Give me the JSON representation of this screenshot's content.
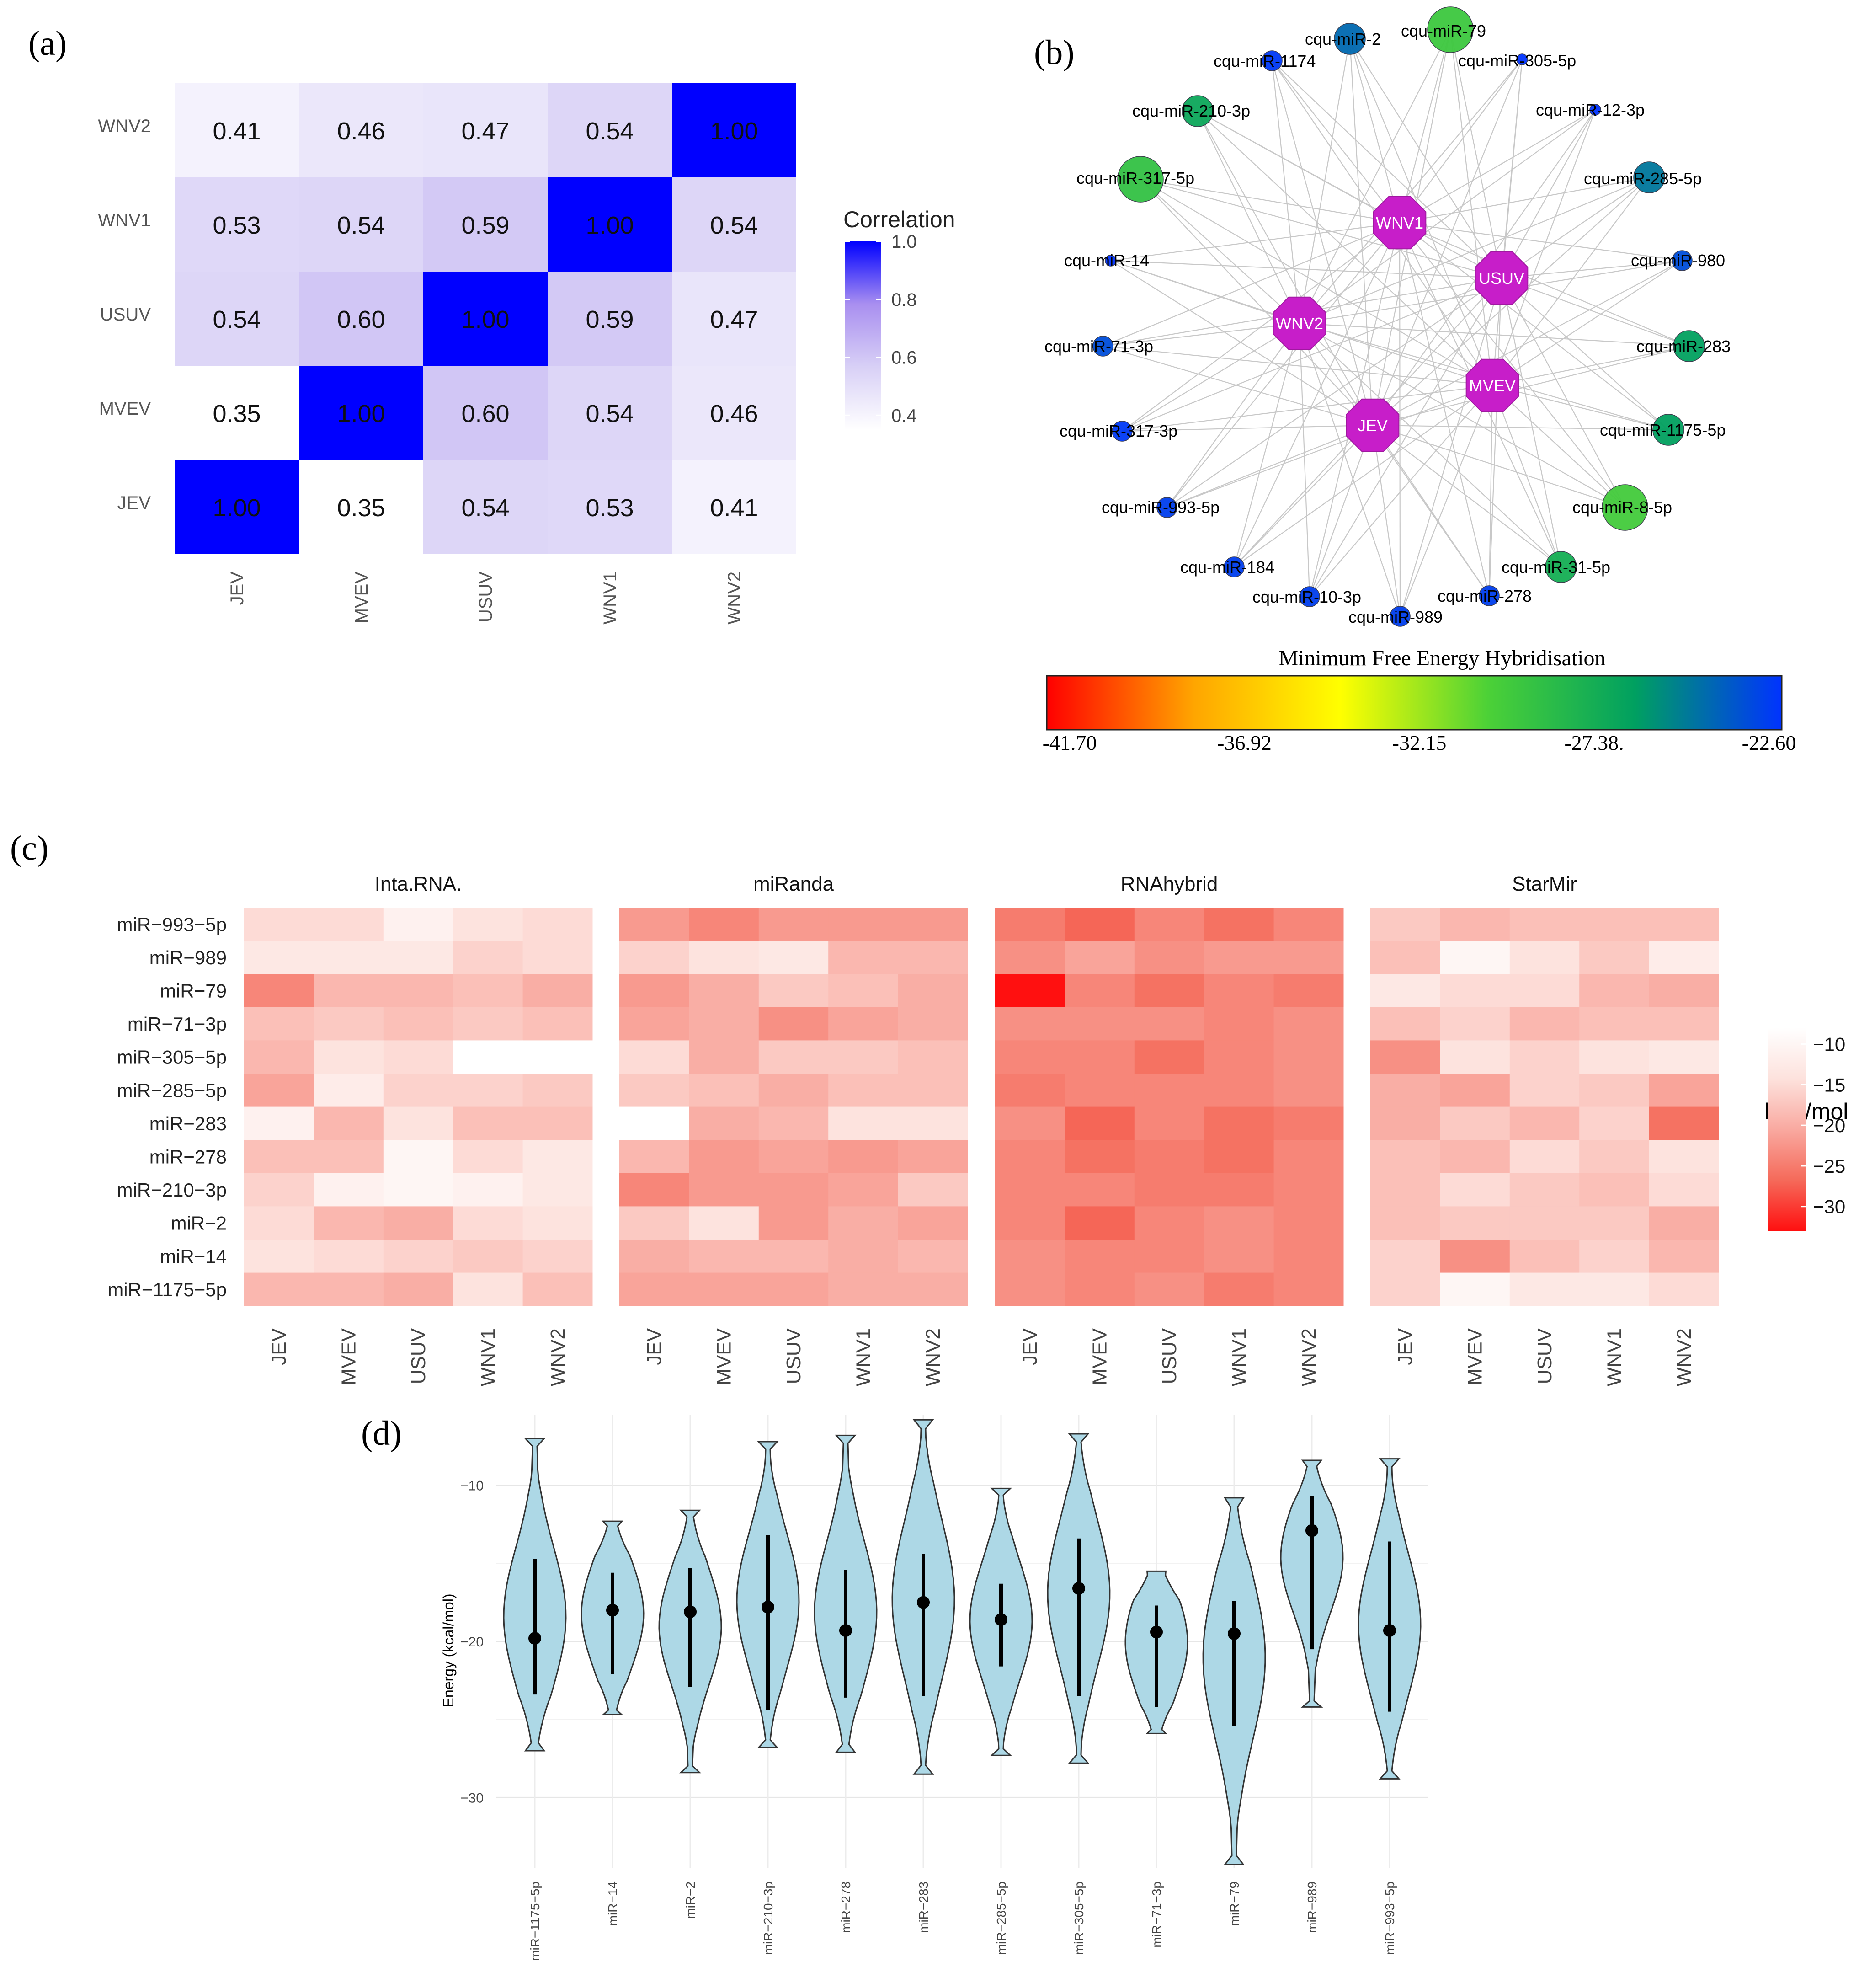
{
  "panels": {
    "a": {
      "label": "(a)",
      "chart_data": {
        "type": "heatmap",
        "rows": [
          "JEV",
          "MVEV",
          "USUV",
          "WNV1",
          "WNV2"
        ],
        "cols": [
          "JEV",
          "MVEV",
          "USUV",
          "WNV1",
          "WNV2"
        ],
        "values": [
          [
            1.0,
            0.35,
            0.54,
            0.53,
            0.41
          ],
          [
            0.35,
            1.0,
            0.6,
            0.54,
            0.46
          ],
          [
            0.54,
            0.6,
            1.0,
            0.59,
            0.47
          ],
          [
            0.53,
            0.54,
            0.59,
            1.0,
            0.54
          ],
          [
            0.41,
            0.46,
            0.47,
            0.54,
            1.0
          ]
        ],
        "cell_labels": [
          [
            "1.00",
            "0.35",
            "0.54",
            "0.53",
            "0.41"
          ],
          [
            "0.35",
            "1.00",
            "0.60",
            "0.54",
            "0.46"
          ],
          [
            "0.54",
            "0.60",
            "1.00",
            "0.59",
            "0.47"
          ],
          [
            "0.53",
            "0.54",
            "0.59",
            "1.00",
            "0.54"
          ],
          [
            "0.41",
            "0.46",
            "0.47",
            "0.54",
            "1.00"
          ]
        ],
        "legend_title": "Correlation",
        "legend_ticks": [
          "1.0",
          "0.8",
          "0.6",
          "0.4"
        ],
        "legend_range": [
          0.35,
          1.0
        ],
        "low_color": "#ffffff",
        "high_color": "#0000ff"
      }
    },
    "b": {
      "label": "(b)",
      "chart_data": {
        "type": "network",
        "hubs": [
          "WNV1",
          "USUV",
          "WNV2",
          "MVEV",
          "JEV"
        ],
        "hub_color": "#c71ec9",
        "nodes": [
          {
            "label": "cqu-miR-2",
            "mfe": -24.5,
            "size": "medium"
          },
          {
            "label": "cqu-miR-79",
            "mfe": -29.5,
            "size": "large"
          },
          {
            "label": "cqu-miR-1174",
            "mfe": -22.8,
            "size": "small"
          },
          {
            "label": "cqu-miR-305-5p",
            "mfe": -22.6,
            "size": "tiny"
          },
          {
            "label": "cqu-miR-210-3p",
            "mfe": -27.0,
            "size": "medium"
          },
          {
            "label": "cqu-miR-12-3p",
            "mfe": -22.6,
            "size": "tiny"
          },
          {
            "label": "cqu-miR-317-5p",
            "mfe": -29.0,
            "size": "large"
          },
          {
            "label": "cqu-miR-285-5p",
            "mfe": -25.0,
            "size": "medium"
          },
          {
            "label": "cqu-miR-14",
            "mfe": -22.6,
            "size": "tiny"
          },
          {
            "label": "cqu-miR-980",
            "mfe": -23.5,
            "size": "small"
          },
          {
            "label": "cqu-miR-71-3p",
            "mfe": -23.5,
            "size": "small"
          },
          {
            "label": "cqu-miR-283",
            "mfe": -26.5,
            "size": "medium"
          },
          {
            "label": "cqu-miR-317-3p",
            "mfe": -22.8,
            "size": "small"
          },
          {
            "label": "cqu-miR-1175-5p",
            "mfe": -26.5,
            "size": "medium"
          },
          {
            "label": "cqu-miR-993-5p",
            "mfe": -23.0,
            "size": "small"
          },
          {
            "label": "cqu-miR-8-5p",
            "mfe": -29.8,
            "size": "large"
          },
          {
            "label": "cqu-miR-184",
            "mfe": -23.0,
            "size": "small"
          },
          {
            "label": "cqu-miR-31-5p",
            "mfe": -27.5,
            "size": "medium"
          },
          {
            "label": "cqu-miR-10-3p",
            "mfe": -23.0,
            "size": "small"
          },
          {
            "label": "cqu-miR-278",
            "mfe": -23.0,
            "size": "small"
          },
          {
            "label": "cqu-miR-989",
            "mfe": -23.0,
            "size": "small"
          }
        ],
        "colorbar_title": "Minimum Free Energy Hybridisation",
        "colorbar_ticks": [
          "-41.70",
          "-36.92",
          "-32.15",
          "-27.38.",
          "-22.60"
        ],
        "colorbar_range": [
          -41.7,
          -22.6
        ],
        "colorbar_colors": [
          "#ff0000",
          "#ffa500",
          "#ffff00",
          "#4cd137",
          "#00a060",
          "#0033ff"
        ]
      }
    },
    "c": {
      "label": "(c)",
      "chart_data": {
        "type": "heatmap",
        "facets": [
          "Inta.RNA.",
          "miRanda",
          "RNAhybrid",
          "StarMir"
        ],
        "rows": [
          "miR−993−5p",
          "miR−989",
          "miR−79",
          "miR−71−3p",
          "miR−305−5p",
          "miR−285−5p",
          "miR−283",
          "miR−278",
          "miR−210−3p",
          "miR−2",
          "miR−14",
          "miR−1175−5p"
        ],
        "cols": [
          "JEV",
          "MVEV",
          "USUV",
          "WNV1",
          "WNV2"
        ],
        "values": {
          "Inta.RNA.": [
            [
              -15,
              -15,
              -11,
              -14,
              -15
            ],
            [
              -13,
              -13,
              -13,
              -16,
              -15
            ],
            [
              -24,
              -19,
              -19,
              -18,
              -20
            ],
            [
              -18,
              -17,
              -18,
              -17,
              -18
            ],
            [
              -19,
              -14,
              -15,
              -8,
              -8
            ],
            [
              -21,
              -12,
              -16,
              -16,
              -17
            ],
            [
              -11,
              -19,
              -14,
              -18,
              -18
            ],
            [
              -18,
              -18,
              -10,
              -15,
              -13
            ],
            [
              -16,
              -11,
              -10,
              -11,
              -13
            ],
            [
              -15,
              -19,
              -20,
              -15,
              -14
            ],
            [
              -14,
              -15,
              -16,
              -17,
              -16
            ],
            [
              -19,
              -19,
              -20,
              -14,
              -18
            ]
          ],
          "miRanda": [
            [
              -22,
              -24,
              -22,
              -22,
              -22
            ],
            [
              -16,
              -14,
              -13,
              -19,
              -19
            ],
            [
              -22,
              -20,
              -17,
              -18,
              -20
            ],
            [
              -21,
              -20,
              -23,
              -21,
              -20
            ],
            [
              -15,
              -20,
              -17,
              -17,
              -18
            ],
            [
              -17,
              -18,
              -20,
              -18,
              -18
            ],
            [
              -8,
              -20,
              -19,
              -14,
              -14
            ],
            [
              -19,
              -22,
              -21,
              -22,
              -21
            ],
            [
              -24,
              -22,
              -22,
              -21,
              -17
            ],
            [
              -17,
              -14,
              -22,
              -20,
              -21
            ],
            [
              -20,
              -19,
              -19,
              -20,
              -19
            ],
            [
              -21,
              -21,
              -21,
              -20,
              -20
            ]
          ],
          "RNAhybrid": [
            [
              -25,
              -27,
              -24,
              -26,
              -24
            ],
            [
              -23,
              -21,
              -23,
              -22,
              -22
            ],
            [
              -33,
              -24,
              -26,
              -24,
              -25
            ],
            [
              -23,
              -23,
              -23,
              -24,
              -23
            ],
            [
              -24,
              -24,
              -26,
              -24,
              -23
            ],
            [
              -25,
              -24,
              -24,
              -24,
              -23
            ],
            [
              -23,
              -27,
              -24,
              -26,
              -25
            ],
            [
              -24,
              -26,
              -25,
              -26,
              -24
            ],
            [
              -24,
              -24,
              -25,
              -25,
              -24
            ],
            [
              -24,
              -27,
              -24,
              -23,
              -24
            ],
            [
              -23,
              -24,
              -24,
              -23,
              -24
            ],
            [
              -23,
              -24,
              -23,
              -25,
              -24
            ]
          ],
          "StarMir": [
            [
              -17,
              -19,
              -18,
              -18,
              -18
            ],
            [
              -18,
              -10,
              -14,
              -17,
              -12
            ],
            [
              -13,
              -15,
              -15,
              -19,
              -20
            ],
            [
              -18,
              -16,
              -19,
              -18,
              -18
            ],
            [
              -23,
              -14,
              -16,
              -14,
              -13
            ],
            [
              -20,
              -21,
              -16,
              -17,
              -21
            ],
            [
              -20,
              -17,
              -19,
              -16,
              -26
            ],
            [
              -18,
              -19,
              -15,
              -17,
              -14
            ],
            [
              -18,
              -15,
              -17,
              -18,
              -15
            ],
            [
              -18,
              -17,
              -17,
              -17,
              -20
            ],
            [
              -16,
              -23,
              -18,
              -16,
              -19
            ],
            [
              -16,
              -10,
              -13,
              -13,
              -15
            ]
          ]
        },
        "legend_title": "kcal/mol",
        "legend_ticks": [
          "−10",
          "−15",
          "−20",
          "−25",
          "−30"
        ],
        "legend_range": [
          -33,
          -8
        ]
      }
    },
    "d": {
      "label": "(d)",
      "chart_data": {
        "type": "violin",
        "ylabel": "Energy (kcal/mol)",
        "yticks": [
          "−10",
          "−20",
          "−30"
        ],
        "ylim": [
          -34.5,
          -5.5
        ],
        "categories": [
          "miR−1175−5p",
          "miR−14",
          "miR−2",
          "miR−210−3p",
          "miR−278",
          "miR−283",
          "miR−285−5p",
          "miR−305−5p",
          "miR−71−3p",
          "miR−79",
          "miR−989",
          "miR−993−5p"
        ],
        "series": [
          {
            "name": "miR-1175-5p",
            "min": -27.0,
            "max": -7.0,
            "mean": -19.8,
            "sd_low": -23.4,
            "sd_high": -14.7
          },
          {
            "name": "miR-14",
            "min": -24.7,
            "max": -12.3,
            "mean": -18.0,
            "sd_low": -22.1,
            "sd_high": -15.6
          },
          {
            "name": "miR-2",
            "min": -28.4,
            "max": -11.6,
            "mean": -18.1,
            "sd_low": -22.9,
            "sd_high": -15.3
          },
          {
            "name": "miR-210-3p",
            "min": -26.8,
            "max": -7.2,
            "mean": -17.8,
            "sd_low": -24.4,
            "sd_high": -13.2
          },
          {
            "name": "miR-278",
            "min": -27.1,
            "max": -6.8,
            "mean": -19.3,
            "sd_low": -23.6,
            "sd_high": -15.4
          },
          {
            "name": "miR-283",
            "min": -28.5,
            "max": -5.8,
            "mean": -17.5,
            "sd_low": -23.5,
            "sd_high": -14.4
          },
          {
            "name": "miR-285-5p",
            "min": -27.3,
            "max": -10.2,
            "mean": -18.6,
            "sd_low": -21.6,
            "sd_high": -16.3
          },
          {
            "name": "miR-305-5p",
            "min": -27.8,
            "max": -6.7,
            "mean": -16.6,
            "sd_low": -23.5,
            "sd_high": -13.4
          },
          {
            "name": "miR-71-3p",
            "min": -25.9,
            "max": -15.5,
            "mean": -19.4,
            "sd_low": -24.2,
            "sd_high": -17.7
          },
          {
            "name": "miR-79",
            "min": -34.3,
            "max": -10.8,
            "mean": -19.5,
            "sd_low": -25.4,
            "sd_high": -17.4
          },
          {
            "name": "miR-989",
            "min": -24.2,
            "max": -8.4,
            "mean": -12.9,
            "sd_low": -20.5,
            "sd_high": -10.7
          },
          {
            "name": "miR-993-5p",
            "min": -28.8,
            "max": -8.3,
            "mean": -19.3,
            "sd_low": -24.5,
            "sd_high": -13.6
          }
        ]
      }
    }
  }
}
